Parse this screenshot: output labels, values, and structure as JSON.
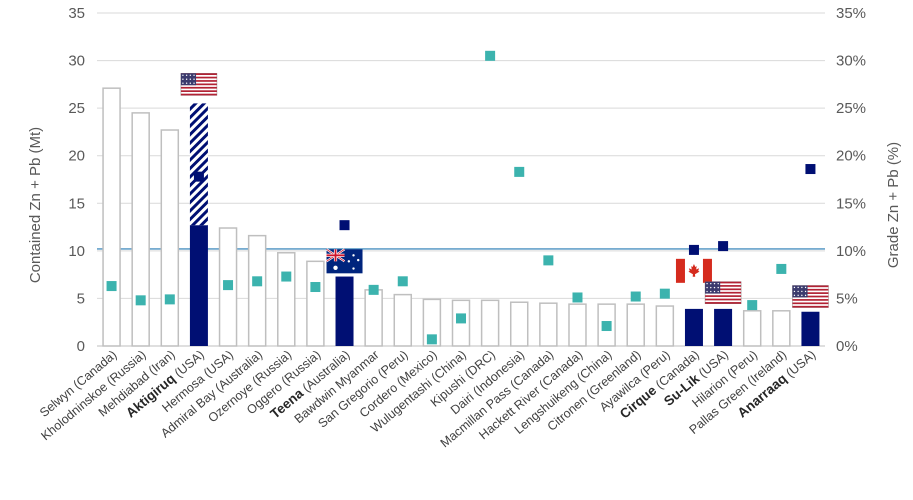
{
  "chart_data": {
    "type": "bar",
    "ylabel": "Contained Zn + Pb (Mt)",
    "y2label": "Grade Zn + Pb (%)",
    "ylim": [
      0,
      35
    ],
    "y2lim": [
      0,
      35
    ],
    "yticks": [
      "0",
      "5",
      "10",
      "15",
      "20",
      "25",
      "30",
      "35"
    ],
    "y2ticks": [
      "0%",
      "5%",
      "10%",
      "15%",
      "20%",
      "25%",
      "30%",
      "35%"
    ],
    "reference_line": 10.2,
    "grid": true,
    "categories": [
      {
        "pre": "",
        "bold": "",
        "post": "Selwyn (Canada)",
        "highlight": false
      },
      {
        "pre": "",
        "bold": "",
        "post": "Kholodninskoe (Russia)",
        "highlight": false
      },
      {
        "pre": "",
        "bold": "",
        "post": "Mehdiabad (Iran)",
        "highlight": false
      },
      {
        "pre": "",
        "bold": "Aktigiruq",
        "post": " (USA)",
        "highlight": true
      },
      {
        "pre": "",
        "bold": "",
        "post": "Hermosa (USA)",
        "highlight": false
      },
      {
        "pre": "",
        "bold": "",
        "post": "Admiral Bay (Australia)",
        "highlight": false
      },
      {
        "pre": "",
        "bold": "",
        "post": "Ozernoye (Russia)",
        "highlight": false
      },
      {
        "pre": "",
        "bold": "",
        "post": "Oggero (Russia)",
        "highlight": false
      },
      {
        "pre": "",
        "bold": "Teena",
        "post": " (Australia)",
        "highlight": true
      },
      {
        "pre": "",
        "bold": "",
        "post": "Bawdwin Myanmar",
        "highlight": false
      },
      {
        "pre": "",
        "bold": "",
        "post": "San Gregorio (Peru)",
        "highlight": false
      },
      {
        "pre": "",
        "bold": "",
        "post": "Cordero (Mexico)",
        "highlight": false
      },
      {
        "pre": "",
        "bold": "",
        "post": "Wulugentashi (China)",
        "highlight": false
      },
      {
        "pre": "",
        "bold": "",
        "post": "Kipushi (DRC)",
        "highlight": false
      },
      {
        "pre": "",
        "bold": "",
        "post": "Dairi (Indonesia)",
        "highlight": false
      },
      {
        "pre": "",
        "bold": "",
        "post": "Macmillan Pass (Canada)",
        "highlight": false
      },
      {
        "pre": "",
        "bold": "",
        "post": "Hackett River (Canada)",
        "highlight": false
      },
      {
        "pre": "",
        "bold": "",
        "post": "Lengshuikeng (China)",
        "highlight": false
      },
      {
        "pre": "",
        "bold": "",
        "post": "Citronen (Greenland)",
        "highlight": false
      },
      {
        "pre": "",
        "bold": "",
        "post": "Ayawilca (Peru)",
        "highlight": false
      },
      {
        "pre": "",
        "bold": "Cirque",
        "post": " (Canada)",
        "highlight": true
      },
      {
        "pre": "",
        "bold": "Su-Lik",
        "post": " (USA)",
        "highlight": true
      },
      {
        "pre": "",
        "bold": "",
        "post": "Hilarion (Peru)",
        "highlight": false
      },
      {
        "pre": "",
        "bold": "",
        "post": "Pallas Green (Ireland)",
        "highlight": false
      },
      {
        "pre": "",
        "bold": "Anarraaq",
        "post": " (USA)",
        "highlight": true
      }
    ],
    "series": [
      {
        "kind": "bar",
        "values": [
          27.1,
          24.5,
          22.7,
          25.5,
          12.4,
          11.6,
          9.8,
          8.9,
          7.3,
          5.9,
          5.4,
          4.9,
          4.8,
          4.8,
          4.6,
          4.5,
          4.4,
          4.4,
          4.4,
          4.2,
          3.9,
          3.9,
          3.7,
          3.7,
          3.6
        ],
        "hatched_from": [
          null,
          null,
          null,
          12.7,
          null,
          null,
          null,
          null,
          null,
          null,
          null,
          null,
          null,
          null,
          null,
          null,
          null,
          null,
          null,
          null,
          null,
          null,
          null,
          null,
          null
        ]
      },
      {
        "kind": "scatter",
        "axis": "right",
        "values": [
          6.3,
          4.8,
          4.9,
          17.8,
          6.4,
          6.8,
          7.3,
          6.2,
          12.7,
          5.9,
          6.8,
          0.7,
          2.9,
          30.5,
          18.3,
          9.0,
          5.1,
          2.1,
          5.2,
          5.5,
          10.1,
          10.5,
          4.3,
          8.1,
          18.6
        ]
      }
    ],
    "flags": [
      {
        "category": 3,
        "country": "USA"
      },
      {
        "category": 8,
        "country": "Australia"
      },
      {
        "category": 20,
        "country": "Canada"
      },
      {
        "category": 21,
        "country": "USA"
      },
      {
        "category": 24,
        "country": "USA"
      }
    ],
    "colors": {
      "bar_outline": "#bfbfbf",
      "highlight_bar": "#000f73",
      "marker_default": "#3cb3ae",
      "marker_highlight": "#000f73",
      "reference_line": "#4a90c0",
      "grid": "#d9d9d9",
      "text": "#595959"
    }
  }
}
